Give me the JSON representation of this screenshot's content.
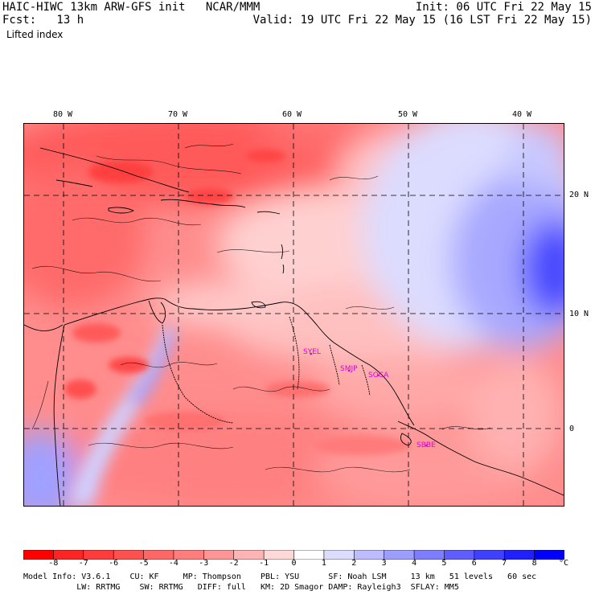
{
  "header": {
    "title_left": "HAIC-HIWC 13km ARW-GFS init   NCAR/MMM",
    "fcst_line": "Fcst:   13 h",
    "field_name": "Lifted index",
    "init_line": "Init: 06 UTC Fri 22 May 15",
    "valid_line": "Valid: 19 UTC Fri 22 May 15 (16 LST Fri 22 May 15)"
  },
  "map": {
    "lon_labels": [
      "80 W",
      "70 W",
      "60 W",
      "50 W",
      "40 W"
    ],
    "lat_labels": [
      "20 N",
      "10 N",
      "0"
    ],
    "stations": [
      "SYEL",
      "SMJP",
      "SOCA",
      "SBBE"
    ]
  },
  "colorbar": {
    "labels": [
      "-8",
      "-7",
      "-6",
      "-5",
      "-4",
      "-3",
      "-2",
      "-1",
      "0",
      "1",
      "2",
      "3",
      "4",
      "5",
      "6",
      "7",
      "8"
    ],
    "unit": "°C",
    "colors": [
      "#ff0000",
      "#ff2424",
      "#ff3b3b",
      "#ff5050",
      "#ff6666",
      "#ff7d7d",
      "#ff9595",
      "#ffb4b4",
      "#ffd8d8",
      "#ffffff",
      "#dcdcff",
      "#bcbcff",
      "#9d9dff",
      "#7d7dff",
      "#5e5eff",
      "#4040ff",
      "#2020ff",
      "#0000ff"
    ]
  },
  "model_info": {
    "line1": "Model Info: V3.6.1    CU: KF     MP: Thompson    PBL: YSU      SF: Noah LSM     13 km   51 levels   60 sec",
    "line2": "           LW: RRTMG    SW: RRTMG   DIFF: full   KM: 2D Smagor DAMP: Rayleigh3  SFLAY: MM5"
  }
}
